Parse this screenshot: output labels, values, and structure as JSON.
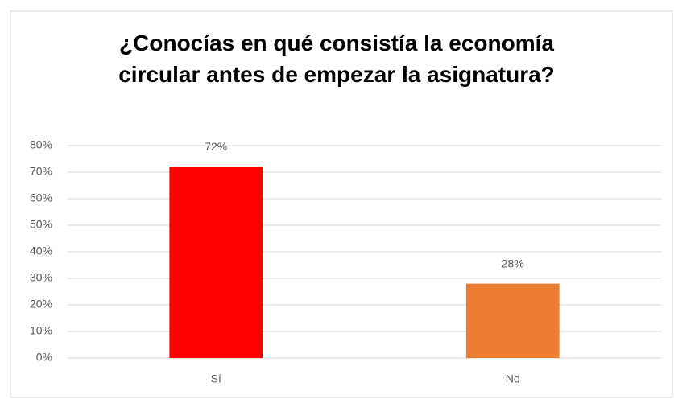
{
  "chart_data": {
    "type": "bar",
    "title": "¿Conocías en qué consistía la economía circular antes de empezar la asignatura?",
    "categories": [
      "Sí",
      "No"
    ],
    "values": [
      72,
      28
    ],
    "value_labels": [
      "72%",
      "28%"
    ],
    "colors": [
      "#ff0000",
      "#ed7d31"
    ],
    "ylim": [
      0,
      80
    ],
    "yticks": [
      {
        "value": 0,
        "label": "0%"
      },
      {
        "value": 10,
        "label": "10%"
      },
      {
        "value": 20,
        "label": "20%"
      },
      {
        "value": 30,
        "label": "30%"
      },
      {
        "value": 40,
        "label": "40%"
      },
      {
        "value": 50,
        "label": "50%"
      },
      {
        "value": 60,
        "label": "60%"
      },
      {
        "value": 70,
        "label": "70%"
      },
      {
        "value": 80,
        "label": "80%"
      }
    ],
    "grid": true
  }
}
